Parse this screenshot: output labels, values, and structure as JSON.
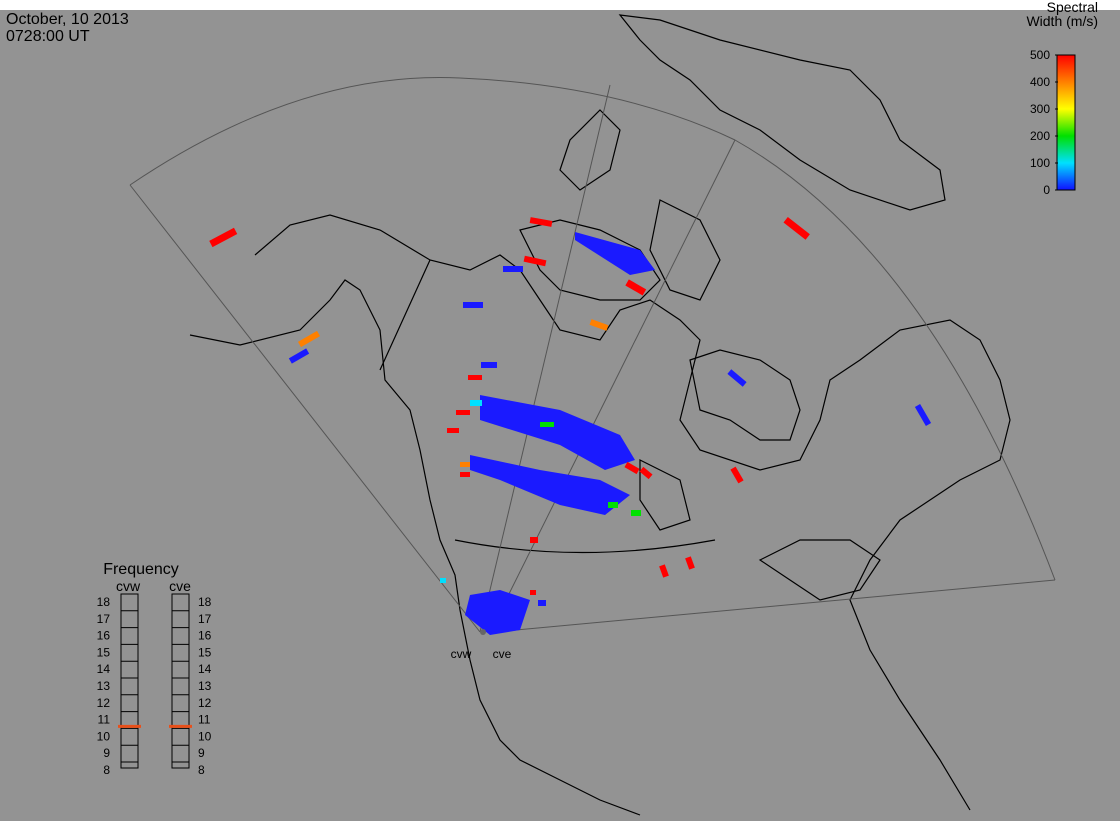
{
  "header": {
    "date": "October, 10 2013",
    "time": "0728:00 UT"
  },
  "colorbar": {
    "title": [
      "Spectral",
      "Width (m/s)"
    ],
    "lim": [
      0,
      500
    ],
    "ticks": [
      0,
      100,
      200,
      300,
      400,
      500
    ],
    "colors": [
      "#1010ff",
      "#00e0ff",
      "#00e000",
      "#ffff00",
      "#ff8000",
      "#ff0000"
    ]
  },
  "frequency": {
    "title": "Frequency",
    "lim": [
      8,
      18
    ],
    "ticks": [
      8,
      9,
      10,
      11,
      12,
      13,
      14,
      15,
      16,
      17,
      18
    ],
    "series": [
      {
        "name": "cvw",
        "value": 10.6,
        "color": "#e8501a"
      },
      {
        "name": "cve",
        "value": 10.6,
        "color": "#e8501a"
      }
    ]
  },
  "stations": [
    "cvw",
    "cve"
  ]
}
